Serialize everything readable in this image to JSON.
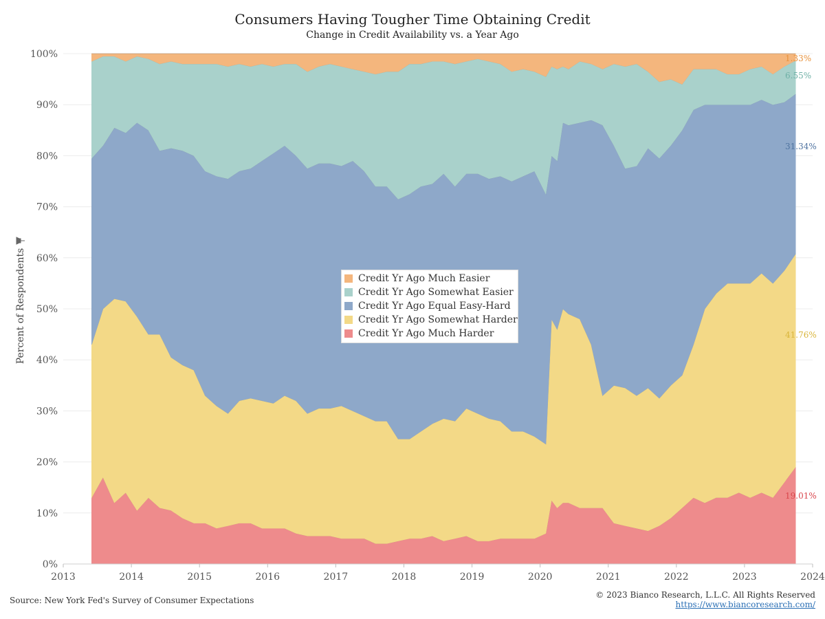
{
  "title": "Consumers Having Tougher Time Obtaining Credit",
  "subtitle": "Change in Credit Availability vs. a Year Ago",
  "source": "Source: New York Fed's Survey of Consumer Expectations",
  "copyright": "© 2023 Bianco Research, L.L.C. All Rights Reserved",
  "url": "https://www.biancoresearch.com/",
  "chart_data": {
    "type": "area",
    "stacked": true,
    "ylabel": "Percent of Respondents",
    "ylim": [
      0,
      100
    ],
    "yticks": [
      "0%",
      "10%",
      "20%",
      "30%",
      "40%",
      "50%",
      "60%",
      "70%",
      "80%",
      "90%",
      "100%"
    ],
    "xticks": [
      "2013",
      "2014",
      "2015",
      "2016",
      "2017",
      "2018",
      "2019",
      "2020",
      "2021",
      "2022",
      "2023",
      "2024"
    ],
    "xlim": [
      "2013-01",
      "2024-01"
    ],
    "grid": true,
    "legend_position": "center",
    "x": [
      "2013-06",
      "2013-08",
      "2013-10",
      "2013-12",
      "2014-02",
      "2014-04",
      "2014-06",
      "2014-08",
      "2014-10",
      "2014-12",
      "2015-02",
      "2015-04",
      "2015-06",
      "2015-08",
      "2015-10",
      "2015-12",
      "2016-02",
      "2016-04",
      "2016-06",
      "2016-08",
      "2016-10",
      "2016-12",
      "2017-02",
      "2017-04",
      "2017-06",
      "2017-08",
      "2017-10",
      "2017-12",
      "2018-02",
      "2018-04",
      "2018-06",
      "2018-08",
      "2018-10",
      "2018-12",
      "2019-02",
      "2019-04",
      "2019-06",
      "2019-08",
      "2019-10",
      "2019-12",
      "2020-02",
      "2020-03",
      "2020-04",
      "2020-05",
      "2020-06",
      "2020-08",
      "2020-10",
      "2020-12",
      "2021-02",
      "2021-04",
      "2021-06",
      "2021-08",
      "2021-10",
      "2021-12",
      "2022-02",
      "2022-04",
      "2022-06",
      "2022-08",
      "2022-10",
      "2022-12",
      "2023-02",
      "2023-04",
      "2023-06",
      "2023-08",
      "2023-10"
    ],
    "series": [
      {
        "name": "Credit Yr Ago Much Harder",
        "color": "#ee8b8c",
        "values": [
          13,
          17,
          12,
          14,
          10.5,
          13,
          11,
          10.5,
          9,
          8,
          8,
          7,
          7.5,
          8,
          8,
          7,
          7,
          7,
          6,
          5.5,
          5.5,
          5.5,
          5,
          5,
          5,
          4,
          4,
          4.5,
          5,
          5,
          5.5,
          4.5,
          5,
          5.5,
          4.5,
          4.5,
          5,
          5,
          5,
          5,
          6,
          12.5,
          11,
          12,
          12,
          11,
          11,
          11,
          8,
          7.5,
          7,
          6.5,
          7.5,
          9,
          11,
          13,
          12,
          13,
          13,
          14,
          13,
          14,
          13,
          16,
          19.01
        ]
      },
      {
        "name": "Credit Yr Ago Somewhat Harder",
        "color": "#f3d987",
        "values": [
          30,
          33,
          40,
          37.5,
          38,
          32,
          34,
          30,
          30,
          30,
          25,
          24,
          22,
          24,
          24.5,
          25,
          24.5,
          26,
          26,
          24,
          25,
          25,
          26,
          25,
          24,
          24,
          24,
          20,
          19.5,
          21,
          22,
          24,
          23,
          25,
          25,
          24,
          23,
          21,
          21,
          20,
          17.5,
          35.5,
          35,
          38,
          37,
          37,
          32,
          22,
          27,
          27,
          26,
          28,
          25,
          26,
          26,
          30,
          38,
          40,
          42,
          41,
          42,
          43,
          42,
          41.5,
          41.76
        ]
      },
      {
        "name": "Credit Yr Ago Equal Easy-Hard",
        "color": "#8ea8c9",
        "values": [
          36.5,
          32,
          33.5,
          33,
          38,
          40,
          36,
          41,
          42,
          42,
          44,
          45,
          46,
          45,
          45,
          47,
          49,
          49,
          48,
          48,
          48,
          48,
          47,
          49,
          48,
          46,
          46,
          47,
          48,
          48,
          47,
          48,
          46,
          46,
          47,
          47,
          48,
          49,
          50,
          52,
          49,
          32,
          33,
          36.5,
          37,
          38.5,
          44,
          53,
          47,
          43,
          45,
          47,
          47,
          47,
          48,
          46,
          40,
          37,
          35,
          35,
          35,
          34,
          35,
          33,
          31.34
        ]
      },
      {
        "name": "Credit Yr Ago Somewhat Easier",
        "color": "#a9d1cb",
        "values": [
          19,
          17.5,
          14,
          14,
          13,
          14,
          17,
          17,
          17,
          18,
          21,
          22,
          22,
          21,
          20,
          19,
          17,
          16,
          18,
          19,
          19,
          19.5,
          19.5,
          18,
          19.5,
          22,
          22.5,
          25,
          25.5,
          24,
          24,
          22,
          24,
          22,
          22.5,
          23,
          22,
          21.5,
          21,
          19.5,
          23,
          17.5,
          18,
          11,
          11,
          12,
          11,
          11,
          16,
          20,
          20,
          15,
          15,
          13,
          9,
          8,
          7,
          7,
          6,
          6,
          7,
          6.5,
          6,
          7,
          6.55
        ]
      },
      {
        "name": "Credit Yr Ago Much Easier",
        "color": "#f4b67d",
        "values": [
          1.5,
          0.5,
          0.5,
          1.5,
          0.5,
          1,
          2,
          1.5,
          2,
          2,
          2,
          2,
          2.5,
          2,
          2.5,
          2,
          2.5,
          2,
          2,
          3.5,
          2.5,
          2,
          2.5,
          3,
          3.5,
          4,
          3.5,
          3.5,
          2,
          2,
          1.5,
          1.5,
          2,
          1.5,
          1,
          1.5,
          2,
          3.5,
          3,
          3.5,
          4.5,
          2.5,
          3,
          2.5,
          3,
          1.5,
          2,
          3,
          2,
          2.5,
          2,
          3.5,
          5.5,
          5,
          6,
          3,
          3,
          3,
          4,
          4,
          3,
          2.5,
          4,
          2.5,
          1.33
        ]
      }
    ],
    "end_labels": [
      {
        "series": "Credit Yr Ago Much Easier",
        "label": "1.33%"
      },
      {
        "series": "Credit Yr Ago Somewhat Easier",
        "label": "6.55%"
      },
      {
        "series": "Credit Yr Ago Equal Easy-Hard",
        "label": "31.34%"
      },
      {
        "series": "Credit Yr Ago Somewhat Harder",
        "label": "41.76%"
      },
      {
        "series": "Credit Yr Ago Much Harder",
        "label": "19.01%"
      }
    ],
    "legend": [
      {
        "label": "Credit Yr Ago Much Easier",
        "color": "#f4b67d"
      },
      {
        "label": "Credit Yr Ago Somewhat Easier",
        "color": "#a9d1cb"
      },
      {
        "label": "Credit Yr Ago Equal Easy-Hard",
        "color": "#8ea8c9"
      },
      {
        "label": "Credit Yr Ago Somewhat Harder",
        "color": "#f3d987"
      },
      {
        "label": "Credit Yr Ago Much Harder",
        "color": "#ee8b8c"
      }
    ],
    "end_label_colors": {
      "Credit Yr Ago Much Easier": "#e8923c",
      "Credit Yr Ago Somewhat Easier": "#6fb0a6",
      "Credit Yr Ago Equal Easy-Hard": "#4f73a0",
      "Credit Yr Ago Somewhat Harder": "#d9b53c",
      "Credit Yr Ago Much Harder": "#d9454b"
    }
  }
}
